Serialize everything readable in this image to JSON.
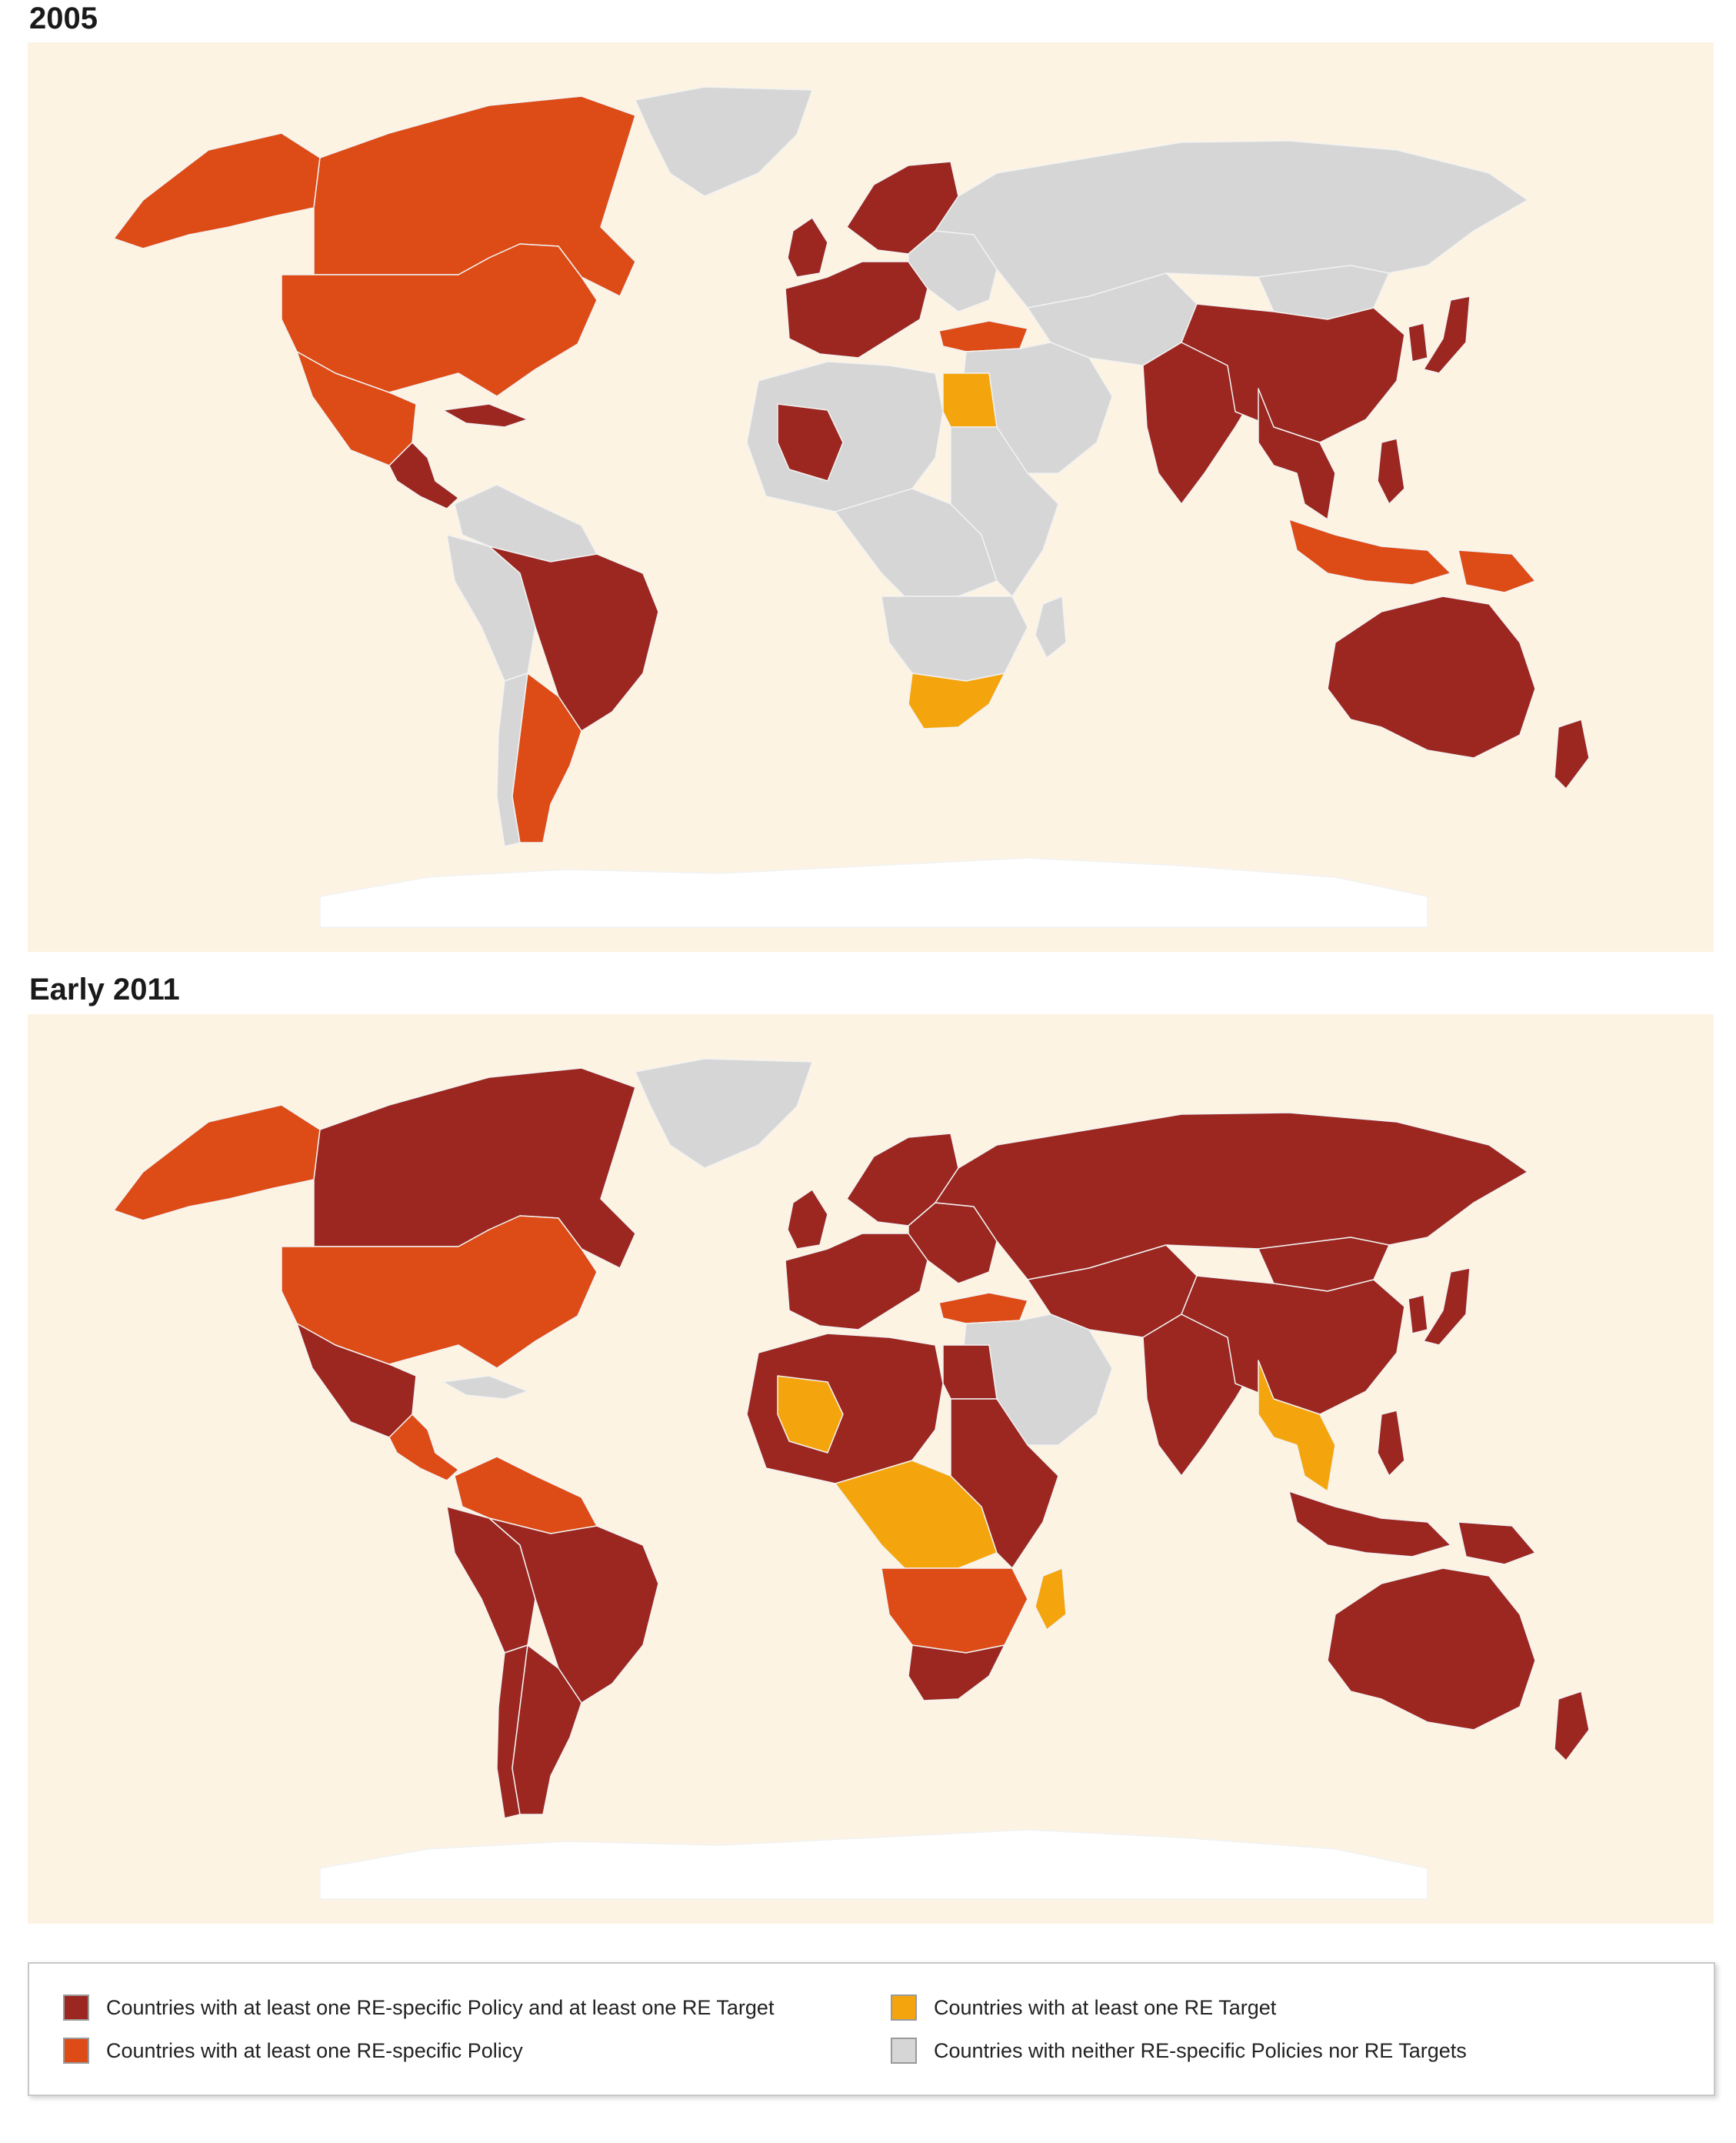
{
  "maps": [
    {
      "title": "2005"
    },
    {
      "title": "Early 2011"
    }
  ],
  "categories": {
    "both": {
      "label": "Countries with at least one RE-specific Policy and at least one RE Target",
      "color": "#9b2720"
    },
    "policy": {
      "label": "Countries with at least one RE-specific Policy",
      "color": "#dd4b16"
    },
    "target": {
      "label": "Countries with at least one RE Target",
      "color": "#f4a50d"
    },
    "neither": {
      "label": "Countries with neither RE-specific Policies nor RE Targets",
      "color": "#d6d6d6"
    }
  },
  "colors": {
    "background": "#fdf3e3",
    "no_data": "#ffffff",
    "border": "#f2f2f2"
  },
  "map_2005": {
    "canada": "policy",
    "usa": "policy",
    "alaska": "policy",
    "mexico": "policy",
    "central_america": "both",
    "cuba": "both",
    "greenland": "neither",
    "south_america_north": "neither",
    "brazil": "both",
    "argentina": "policy",
    "chile": "neither",
    "peru_bolivia": "neither",
    "western_europe": "both",
    "scandinavia": "both",
    "uk": "both",
    "eastern_europe": "neither",
    "turkey": "policy",
    "russia": "neither",
    "central_asia": "neither",
    "middle_east": "neither",
    "north_africa": "neither",
    "mali": "both",
    "egypt": "target",
    "central_africa": "neither",
    "east_africa": "neither",
    "southern_africa": "neither",
    "south_africa": "target",
    "madagascar": "neither",
    "china": "both",
    "india": "both",
    "mongolia": "neither",
    "japan": "both",
    "korea": "both",
    "se_asia_mainland": "both",
    "indonesia": "policy",
    "philippines": "both",
    "papua": "policy",
    "australia": "both",
    "new_zealand": "both",
    "antarctica": "no_data"
  },
  "map_2011": {
    "canada": "both",
    "usa": "policy",
    "alaska": "policy",
    "mexico": "both",
    "central_america": "policy",
    "cuba": "neither",
    "greenland": "neither",
    "south_america_north": "policy",
    "brazil": "both",
    "argentina": "both",
    "chile": "both",
    "peru_bolivia": "both",
    "western_europe": "both",
    "scandinavia": "both",
    "uk": "both",
    "eastern_europe": "both",
    "turkey": "policy",
    "russia": "both",
    "central_asia": "both",
    "middle_east": "neither",
    "north_africa": "both",
    "mali": "target",
    "egypt": "both",
    "central_africa": "target",
    "east_africa": "both",
    "southern_africa": "policy",
    "south_africa": "both",
    "madagascar": "target",
    "china": "both",
    "india": "both",
    "mongolia": "both",
    "japan": "both",
    "korea": "both",
    "se_asia_mainland": "target",
    "indonesia": "both",
    "philippines": "both",
    "papua": "both",
    "australia": "both",
    "new_zealand": "both",
    "antarctica": "no_data"
  }
}
